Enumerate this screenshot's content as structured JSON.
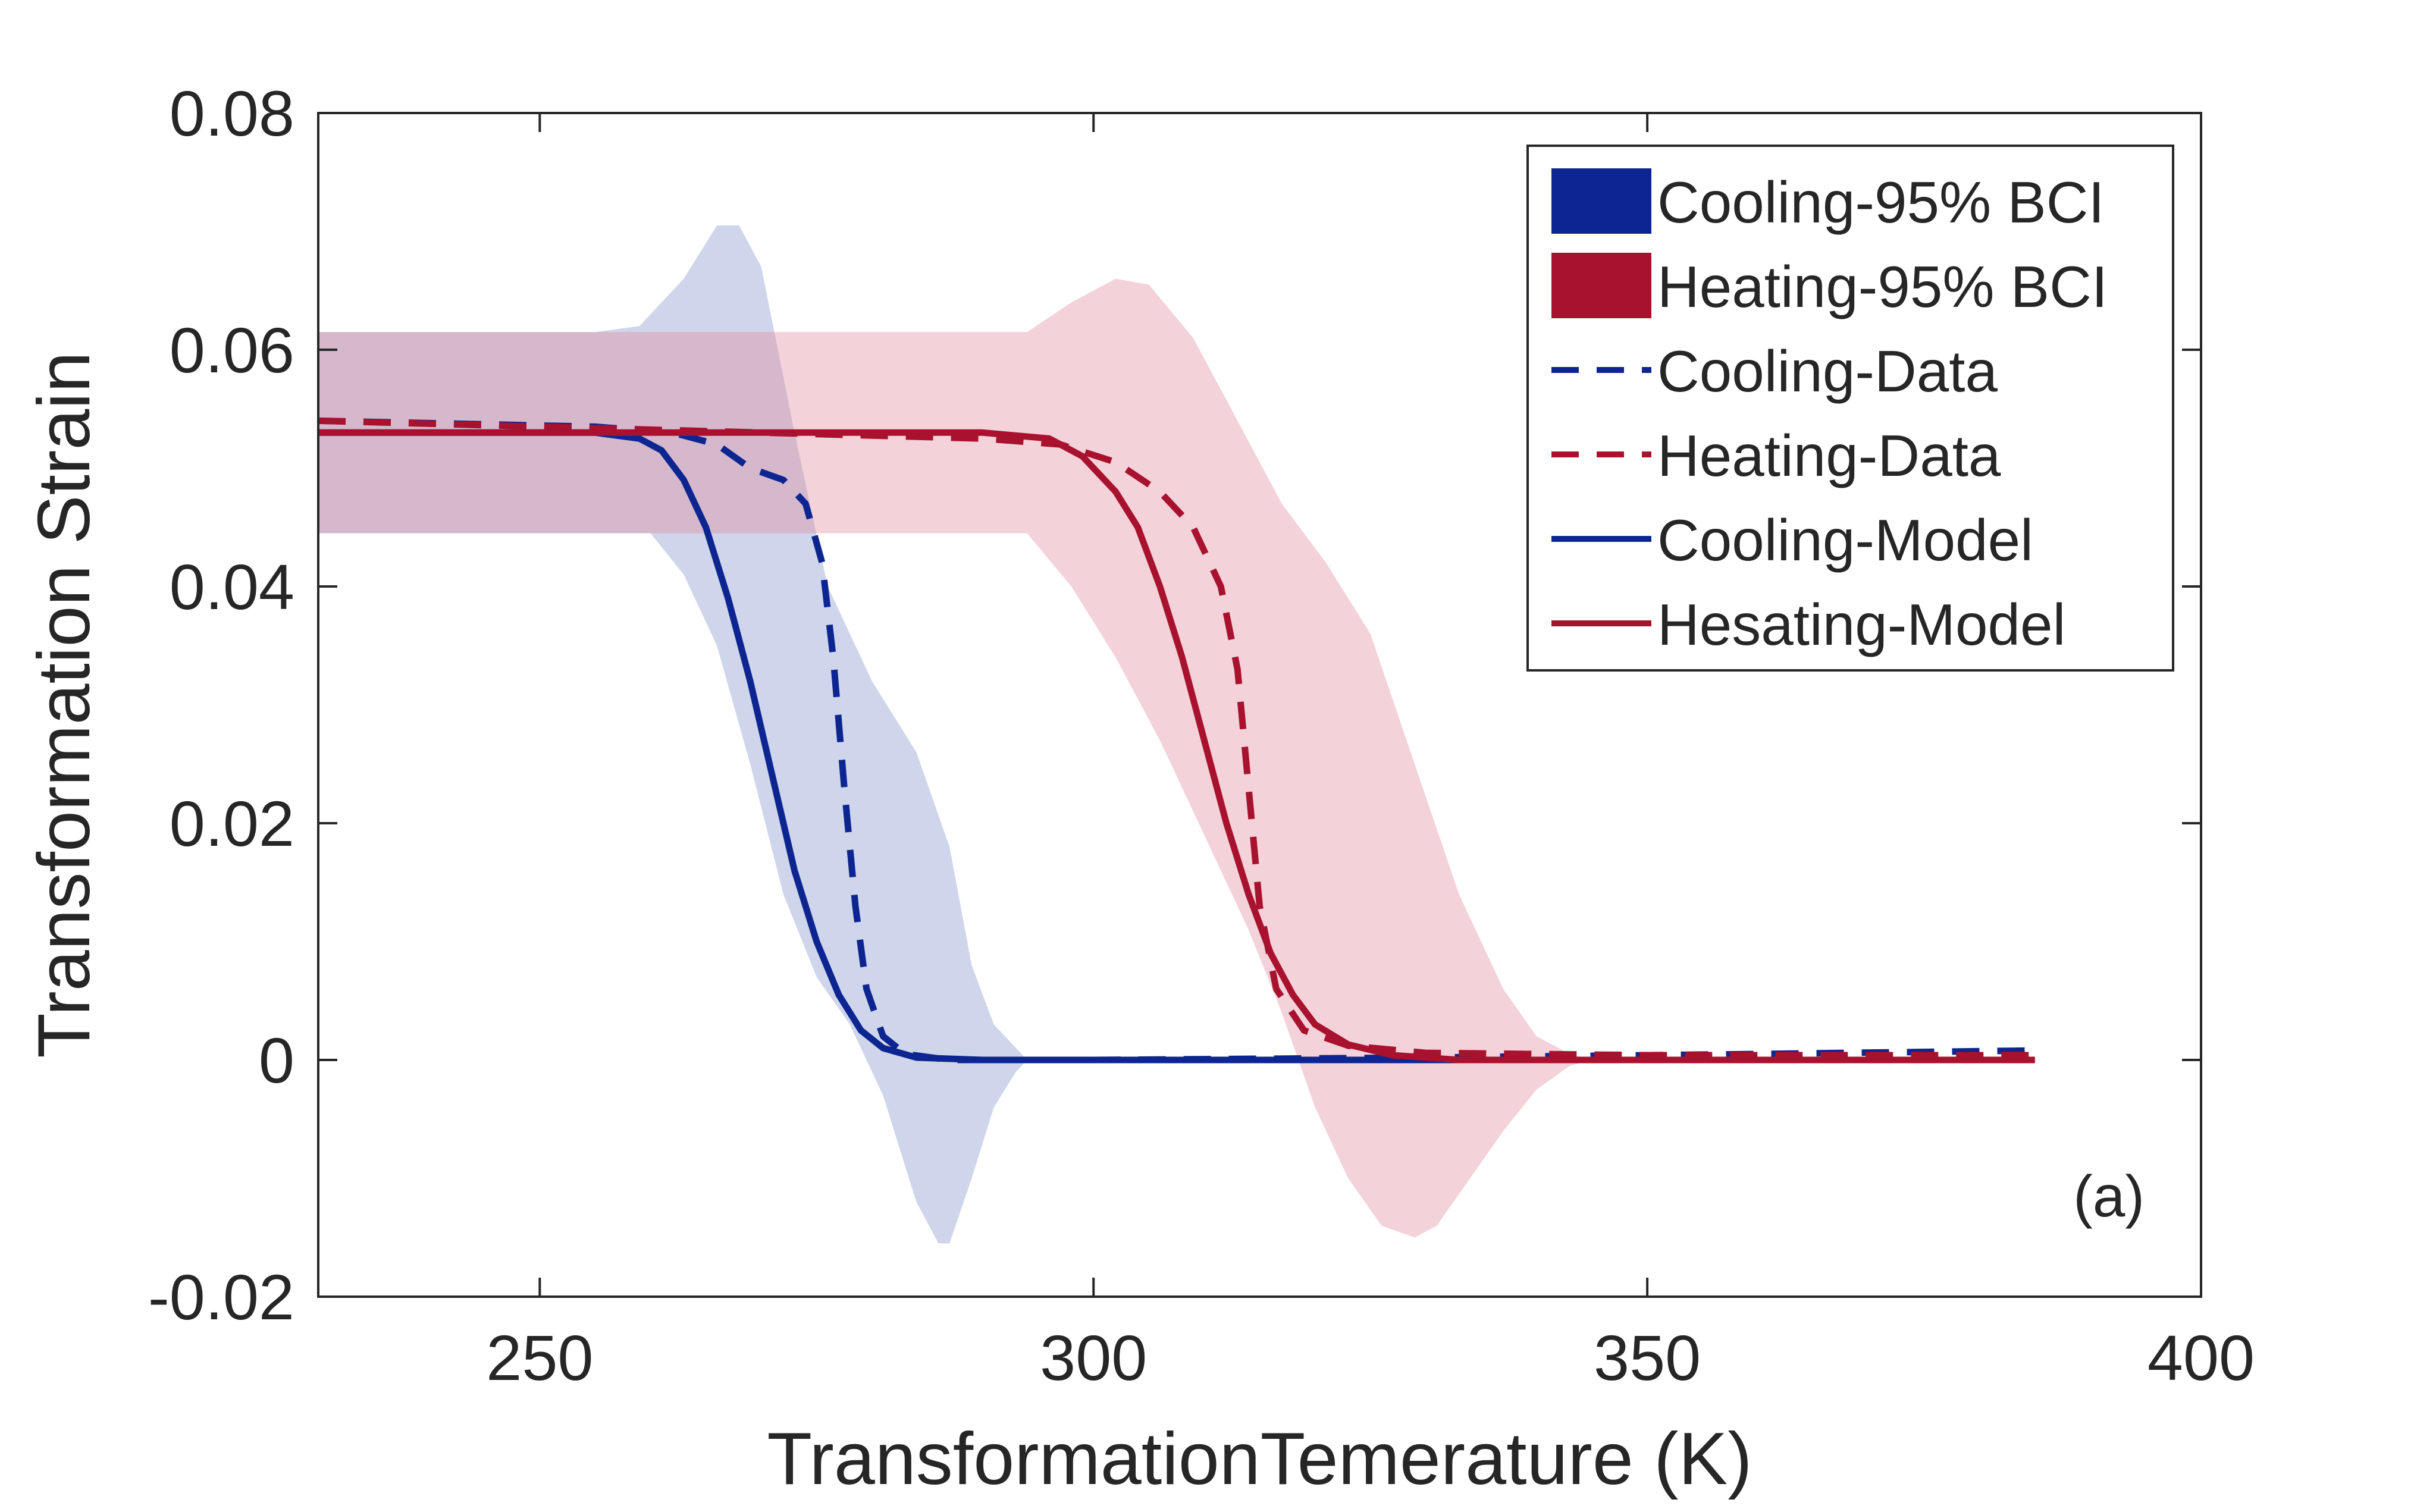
{
  "chart_data": {
    "type": "line",
    "title": "",
    "xlabel": "TransformationTemerature (K)",
    "ylabel": "Transformation Strain",
    "xlim": [
      230,
      400
    ],
    "ylim": [
      -0.02,
      0.08
    ],
    "xticks": [
      250,
      300,
      350,
      400
    ],
    "xtick_labels": [
      "250",
      "300",
      "350",
      "400"
    ],
    "yticks": [
      -0.02,
      0,
      0.02,
      0.04,
      0.06,
      0.08
    ],
    "ytick_labels": [
      "-0.02",
      "0",
      "0.02",
      "0.04",
      "0.06",
      "0.08"
    ],
    "grid": false,
    "annotation": "(a)",
    "legend": {
      "position": "top-right",
      "entries": [
        {
          "label": "Cooling-95% BCI",
          "style": "patch",
          "color": "#0d2591"
        },
        {
          "label": "Heating-95% BCI",
          "style": "patch",
          "color": "#a8122e"
        },
        {
          "label": "Cooling-Data",
          "style": "dashed",
          "color": "#0d2591"
        },
        {
          "label": "Heating-Data",
          "style": "dashed",
          "color": "#a8122e"
        },
        {
          "label": "Cooling-Model",
          "style": "solid",
          "color": "#0d2591"
        },
        {
          "label": "Hesating-Model",
          "style": "solid",
          "color": "#a8122e"
        }
      ]
    },
    "bands": [
      {
        "name": "Cooling-95% BCI",
        "color": "#8090c8",
        "opacity": 0.38,
        "upper": [
          [
            230,
            0.0615
          ],
          [
            255,
            0.0615
          ],
          [
            259,
            0.062
          ],
          [
            263,
            0.066
          ],
          [
            266,
            0.0705
          ],
          [
            268,
            0.0705
          ],
          [
            270,
            0.067
          ],
          [
            273,
            0.053
          ],
          [
            276,
            0.04
          ],
          [
            280,
            0.032
          ],
          [
            284,
            0.026
          ],
          [
            287,
            0.018
          ],
          [
            289,
            0.008
          ],
          [
            291,
            0.003
          ],
          [
            293,
            0.001
          ],
          [
            294,
            0.0
          ]
        ],
        "lower": [
          [
            230,
            0.0445
          ],
          [
            260,
            0.0445
          ],
          [
            263,
            0.041
          ],
          [
            266,
            0.035
          ],
          [
            269,
            0.025
          ],
          [
            272,
            0.014
          ],
          [
            275,
            0.007
          ],
          [
            278,
            0.003
          ],
          [
            281,
            -0.003
          ],
          [
            284,
            -0.012
          ],
          [
            286,
            -0.0155
          ],
          [
            287,
            -0.0155
          ],
          [
            289,
            -0.01
          ],
          [
            291,
            -0.004
          ],
          [
            293,
            -0.001
          ],
          [
            294,
            0.0
          ]
        ]
      },
      {
        "name": "Heating-95% BCI",
        "color": "#e08a9a",
        "opacity": 0.38,
        "upper": [
          [
            230,
            0.0615
          ],
          [
            294,
            0.0615
          ],
          [
            298,
            0.064
          ],
          [
            302,
            0.066
          ],
          [
            305,
            0.0655
          ],
          [
            309,
            0.061
          ],
          [
            313,
            0.054
          ],
          [
            317,
            0.047
          ],
          [
            321,
            0.042
          ],
          [
            325,
            0.036
          ],
          [
            329,
            0.025
          ],
          [
            333,
            0.014
          ],
          [
            337,
            0.006
          ],
          [
            340,
            0.002
          ],
          [
            343,
            0.0005
          ],
          [
            345,
            0.0
          ]
        ],
        "lower": [
          [
            230,
            0.0445
          ],
          [
            294,
            0.0445
          ],
          [
            298,
            0.04
          ],
          [
            302,
            0.034
          ],
          [
            306,
            0.027
          ],
          [
            310,
            0.019
          ],
          [
            314,
            0.011
          ],
          [
            317,
            0.004
          ],
          [
            320,
            -0.004
          ],
          [
            323,
            -0.01
          ],
          [
            326,
            -0.014
          ],
          [
            329,
            -0.015
          ],
          [
            331,
            -0.014
          ],
          [
            334,
            -0.01
          ],
          [
            337,
            -0.006
          ],
          [
            340,
            -0.0025
          ],
          [
            343,
            -0.0005
          ],
          [
            345,
            0.0
          ]
        ]
      }
    ],
    "series": [
      {
        "name": "Cooling-Data",
        "color": "#0d2591",
        "dash": true,
        "points": [
          [
            230,
            0.054
          ],
          [
            255,
            0.0535
          ],
          [
            262,
            0.053
          ],
          [
            266,
            0.052
          ],
          [
            269,
            0.05
          ],
          [
            272,
            0.049
          ],
          [
            274,
            0.047
          ],
          [
            275.5,
            0.042
          ],
          [
            276.5,
            0.034
          ],
          [
            277.5,
            0.023
          ],
          [
            278.5,
            0.013
          ],
          [
            279.5,
            0.006
          ],
          [
            281,
            0.002
          ],
          [
            283,
            0.0005
          ],
          [
            287,
            0.0
          ],
          [
            300,
            0.0
          ],
          [
            330,
            0.0002
          ],
          [
            360,
            0.0005
          ],
          [
            385,
            0.0008
          ]
        ]
      },
      {
        "name": "Heating-Data",
        "color": "#a8122e",
        "dash": true,
        "points": [
          [
            230,
            0.054
          ],
          [
            270,
            0.053
          ],
          [
            290,
            0.0525
          ],
          [
            297,
            0.052
          ],
          [
            302,
            0.0505
          ],
          [
            306,
            0.048
          ],
          [
            309,
            0.045
          ],
          [
            311.5,
            0.04
          ],
          [
            313,
            0.033
          ],
          [
            314,
            0.023
          ],
          [
            315,
            0.013
          ],
          [
            316.5,
            0.006
          ],
          [
            319,
            0.0025
          ],
          [
            323,
            0.0012
          ],
          [
            330,
            0.0006
          ],
          [
            350,
            0.0004
          ],
          [
            385,
            0.0004
          ]
        ]
      },
      {
        "name": "Cooling-Model",
        "color": "#0d2591",
        "dash": false,
        "points": [
          [
            230,
            0.053
          ],
          [
            255,
            0.053
          ],
          [
            259,
            0.0525
          ],
          [
            261,
            0.0515
          ],
          [
            263,
            0.049
          ],
          [
            265,
            0.045
          ],
          [
            267,
            0.039
          ],
          [
            269,
            0.032
          ],
          [
            271,
            0.024
          ],
          [
            273,
            0.016
          ],
          [
            275,
            0.01
          ],
          [
            277,
            0.0055
          ],
          [
            279,
            0.0025
          ],
          [
            281,
            0.001
          ],
          [
            284,
            0.0002
          ],
          [
            290,
            0.0
          ],
          [
            330,
            0.0
          ],
          [
            385,
            0.0
          ]
        ]
      },
      {
        "name": "Hesating-Model",
        "color": "#a8122e",
        "dash": false,
        "points": [
          [
            230,
            0.053
          ],
          [
            290,
            0.053
          ],
          [
            296,
            0.0525
          ],
          [
            299,
            0.051
          ],
          [
            302,
            0.048
          ],
          [
            304,
            0.045
          ],
          [
            306,
            0.04
          ],
          [
            308,
            0.034
          ],
          [
            310,
            0.027
          ],
          [
            312,
            0.02
          ],
          [
            314,
            0.014
          ],
          [
            316,
            0.009
          ],
          [
            318,
            0.0055
          ],
          [
            320,
            0.003
          ],
          [
            323,
            0.0013
          ],
          [
            327,
            0.0004
          ],
          [
            333,
            0.0
          ],
          [
            385,
            0.0
          ]
        ]
      }
    ]
  }
}
